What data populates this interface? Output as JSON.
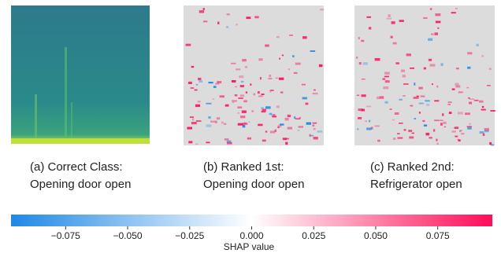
{
  "panels": [
    {
      "caption": [
        "(a) Correct Class:",
        "Opening door open"
      ]
    },
    {
      "caption": [
        "(b) Ranked 1st:",
        "Opening door open"
      ]
    },
    {
      "caption": [
        "(c) Ranked 2nd:",
        "Refrigerator open"
      ]
    }
  ],
  "colorbar": {
    "label": "SHAP value",
    "lim": [
      -0.097,
      0.097
    ],
    "ticks": [
      {
        "value": -0.075,
        "label": "−0.075"
      },
      {
        "value": -0.05,
        "label": "−0.050"
      },
      {
        "value": -0.025,
        "label": "−0.025"
      },
      {
        "value": 0,
        "label": "0.000"
      },
      {
        "value": 0.025,
        "label": "0.025"
      },
      {
        "value": 0.05,
        "label": "0.050"
      },
      {
        "value": 0.075,
        "label": "0.075"
      }
    ],
    "colors": [
      "#1e88e5",
      "#ffffff",
      "#ff0d57"
    ]
  }
}
